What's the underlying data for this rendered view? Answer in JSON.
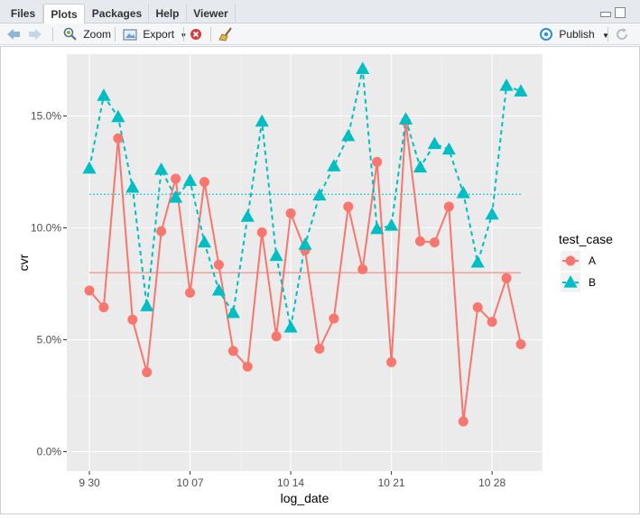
{
  "tabs": [
    {
      "label": "Files",
      "active": false
    },
    {
      "label": "Plots",
      "active": true
    },
    {
      "label": "Packages",
      "active": false
    },
    {
      "label": "Help",
      "active": false
    },
    {
      "label": "Viewer",
      "active": false
    }
  ],
  "toolbar": {
    "zoom_label": "Zoom",
    "export_label": "Export",
    "publish_label": "Publish"
  },
  "chart_data": {
    "type": "line",
    "xlabel": "log_date",
    "ylabel": "cvr",
    "x_tick_labels": [
      "9 30",
      "10 07",
      "10 14",
      "10 21",
      "10 28"
    ],
    "y_tick_labels": [
      "0.0%",
      "5.0%",
      "10.0%",
      "15.0%"
    ],
    "ylim": [
      -0.008,
      0.178
    ],
    "grid": true,
    "legend_title": "test_case",
    "legend_position": "right",
    "series": [
      {
        "name": "A",
        "color": "#F8766D",
        "marker": "circle",
        "linestyle": "solid",
        "mean": 0.08,
        "points": [
          [
            "2017-09-30",
            0.072
          ],
          [
            "2017-10-01",
            0.0645
          ],
          [
            "2017-10-02",
            0.14
          ],
          [
            "2017-10-03",
            0.059
          ],
          [
            "2017-10-04",
            0.0355
          ],
          [
            "2017-10-05",
            0.0985
          ],
          [
            "2017-10-06",
            0.122
          ],
          [
            "2017-10-07",
            0.071
          ],
          [
            "2017-10-08",
            0.1205
          ],
          [
            "2017-10-09",
            0.0835
          ],
          [
            "2017-10-10",
            0.045
          ],
          [
            "2017-10-11",
            0.038
          ],
          [
            "2017-10-12",
            0.098
          ],
          [
            "2017-10-13",
            0.0515
          ],
          [
            "2017-10-14",
            0.1065
          ],
          [
            "2017-10-15",
            0.09
          ],
          [
            "2017-10-16",
            0.046
          ],
          [
            "2017-10-17",
            0.0595
          ],
          [
            "2017-10-18",
            0.1095
          ],
          [
            "2017-10-19",
            0.0815
          ],
          [
            "2017-10-20",
            0.1295
          ],
          [
            "2017-10-21",
            0.04
          ],
          [
            "2017-10-22",
            0.1475
          ],
          [
            "2017-10-23",
            0.094
          ],
          [
            "2017-10-24",
            0.0935
          ],
          [
            "2017-10-25",
            0.1095
          ],
          [
            "2017-10-26",
            0.0135
          ],
          [
            "2017-10-27",
            0.0645
          ],
          [
            "2017-10-28",
            0.058
          ],
          [
            "2017-10-29",
            0.0775
          ],
          [
            "2017-10-30",
            0.048
          ]
        ]
      },
      {
        "name": "B",
        "color": "#00BFC4",
        "marker": "triangle",
        "linestyle": "dashed",
        "mean": 0.115,
        "points": [
          [
            "2017-09-30",
            0.1265
          ],
          [
            "2017-10-01",
            0.159
          ],
          [
            "2017-10-02",
            0.1495
          ],
          [
            "2017-10-03",
            0.118
          ],
          [
            "2017-10-04",
            0.065
          ],
          [
            "2017-10-05",
            0.126
          ],
          [
            "2017-10-06",
            0.1135
          ],
          [
            "2017-10-07",
            0.121
          ],
          [
            "2017-10-08",
            0.0935
          ],
          [
            "2017-10-09",
            0.072
          ],
          [
            "2017-10-10",
            0.062
          ],
          [
            "2017-10-11",
            0.105
          ],
          [
            "2017-10-12",
            0.1475
          ],
          [
            "2017-10-13",
            0.0875
          ],
          [
            "2017-10-14",
            0.0555
          ],
          [
            "2017-10-15",
            0.0925
          ],
          [
            "2017-10-16",
            0.1145
          ],
          [
            "2017-10-17",
            0.1275
          ],
          [
            "2017-10-18",
            0.141
          ],
          [
            "2017-10-19",
            0.171
          ],
          [
            "2017-10-20",
            0.0995
          ],
          [
            "2017-10-21",
            0.101
          ],
          [
            "2017-10-22",
            0.1485
          ],
          [
            "2017-10-23",
            0.127
          ],
          [
            "2017-10-24",
            0.1375
          ],
          [
            "2017-10-25",
            0.135
          ],
          [
            "2017-10-26",
            0.1155
          ],
          [
            "2017-10-27",
            0.0845
          ],
          [
            "2017-10-28",
            0.106
          ],
          [
            "2017-10-29",
            0.1635
          ],
          [
            "2017-10-30",
            0.161
          ]
        ]
      }
    ]
  }
}
